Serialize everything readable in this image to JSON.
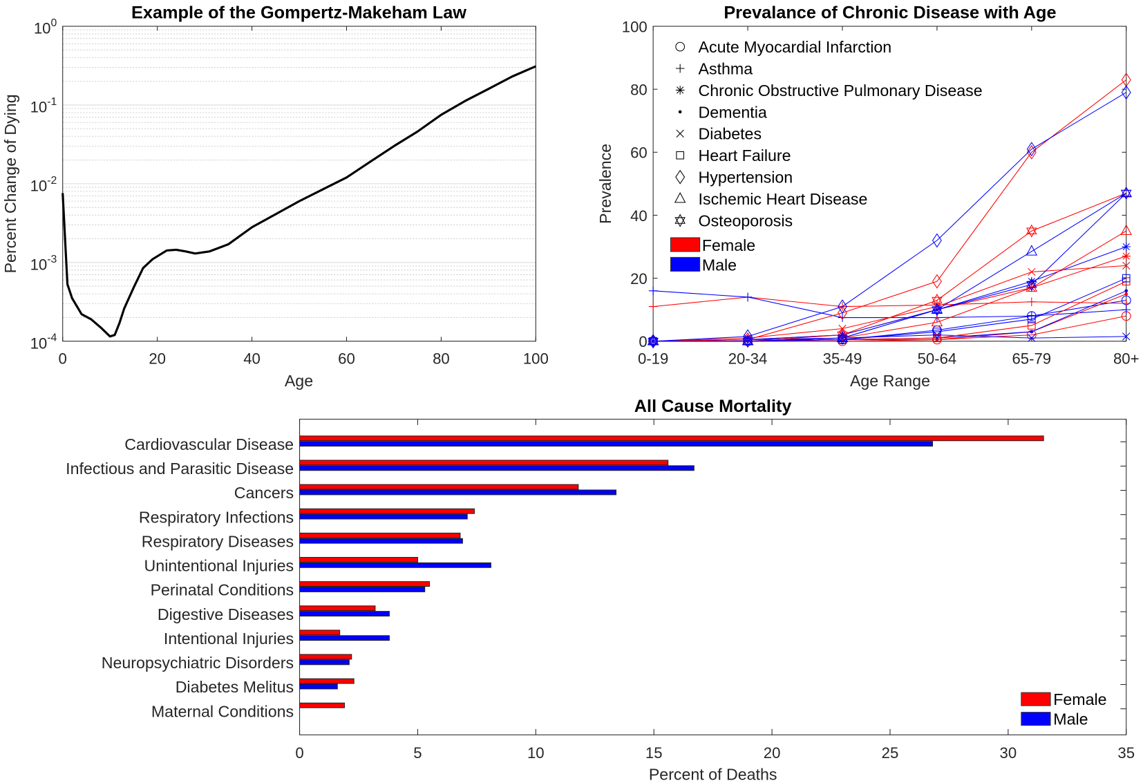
{
  "chart_data": [
    {
      "type": "line",
      "title": "Example of the Gompertz-Makeham Law",
      "xlabel": "Age",
      "ylabel": "Percent Change of Dying",
      "xlim": [
        0,
        100
      ],
      "ylim": [
        0.0001,
        1
      ],
      "yscale": "log",
      "grid": "log minor + major",
      "xticks": [
        "0",
        "20",
        "40",
        "60",
        "80",
        "100"
      ],
      "yticks": [
        "10^0",
        "10^-1",
        "10^-2",
        "10^-3",
        "10^-4"
      ],
      "line_color": "#000000",
      "x": [
        0,
        1,
        2,
        4,
        6,
        8,
        10,
        11,
        12,
        13,
        15,
        17,
        19,
        22,
        24,
        26,
        28,
        31,
        35,
        40,
        45,
        50,
        55,
        60,
        65,
        70,
        75,
        80,
        85,
        90,
        95,
        100
      ],
      "y": [
        0.0076,
        0.00053,
        0.00035,
        0.00022,
        0.00019,
        0.00015,
        0.000115,
        0.00012,
        0.00017,
        0.00026,
        0.00048,
        0.00085,
        0.0011,
        0.00142,
        0.00145,
        0.00138,
        0.0013,
        0.00138,
        0.0017,
        0.0028,
        0.0041,
        0.006,
        0.0085,
        0.012,
        0.019,
        0.03,
        0.046,
        0.075,
        0.112,
        0.16,
        0.23,
        0.31
      ]
    },
    {
      "type": "line",
      "title": "Prevalance of Chronic Disease with Age",
      "xlabel": "Age Range",
      "ylabel": "Prevalence",
      "categories": [
        "0-19",
        "20-34",
        "35-49",
        "50-64",
        "65-79",
        "80+"
      ],
      "ylim": [
        0,
        100
      ],
      "yticks": [
        "0",
        "20",
        "40",
        "60",
        "80",
        "100"
      ],
      "legend": "top-left",
      "groups": [
        {
          "name": "Female",
          "color": "#ff0000"
        },
        {
          "name": "Male",
          "color": "#0000ff"
        }
      ],
      "series": [
        {
          "name": "Acute Myocardial Infarction",
          "marker": "circle",
          "female": [
            0,
            0,
            0,
            0.5,
            2,
            8
          ],
          "male": [
            0,
            0,
            0.5,
            3.5,
            8,
            13
          ]
        },
        {
          "name": "Asthma",
          "marker": "plus",
          "female": [
            11,
            14,
            11,
            11.5,
            12.5,
            12
          ],
          "male": [
            16,
            14,
            7.5,
            7.5,
            8,
            10
          ]
        },
        {
          "name": "Chronic Obstructive Pulmonary Disease",
          "marker": "asterisk",
          "female": [
            0,
            0.5,
            2,
            10,
            17,
            27
          ],
          "male": [
            0,
            0.5,
            2,
            10,
            19,
            30
          ]
        },
        {
          "name": "Dementia",
          "marker": "dot",
          "female": [
            0,
            0,
            0.5,
            0.5,
            3,
            15
          ],
          "male": [
            0,
            0,
            0.5,
            1,
            3,
            16
          ]
        },
        {
          "name": "Diabetes",
          "marker": "x",
          "female": [
            0,
            1,
            4,
            11,
            22,
            24
          ],
          "male": [
            0,
            0.5,
            1,
            2,
            1,
            1.5
          ]
        },
        {
          "name": "Heart Failure",
          "marker": "square",
          "female": [
            0,
            0,
            0.5,
            1,
            5,
            19
          ],
          "male": [
            0,
            0,
            0.5,
            3,
            7,
            20
          ]
        },
        {
          "name": "Hypertension",
          "marker": "diamond",
          "female": [
            0,
            0.5,
            9,
            19,
            60,
            83
          ],
          "male": [
            0,
            1.5,
            11,
            32,
            61,
            79
          ]
        },
        {
          "name": "Ischemic Heart Disease",
          "marker": "triangle",
          "female": [
            0,
            0,
            1,
            6,
            17,
            35
          ],
          "male": [
            0,
            0,
            1,
            10,
            28.5,
            47
          ]
        },
        {
          "name": "Osteoporosis",
          "marker": "hexagram",
          "female": [
            0,
            0,
            2,
            13,
            35,
            47
          ],
          "male": [
            0,
            0,
            1,
            10,
            18,
            47
          ]
        }
      ]
    },
    {
      "type": "bar",
      "orientation": "horizontal",
      "title": "All Cause Mortality",
      "xlabel": "Percent of Deaths",
      "xlim": [
        0,
        35
      ],
      "xticks": [
        "0",
        "5",
        "10",
        "15",
        "20",
        "25",
        "30",
        "35"
      ],
      "legend": "bottom-right",
      "categories": [
        "Cardiovascular Disease",
        "Infectious and Parasitic Disease",
        "Cancers",
        "Respiratory Infections",
        "Respiratory Diseases",
        "Unintentional Injuries",
        "Perinatal Conditions",
        "Digestive Diseases",
        "Intentional Injuries",
        "Neuropsychiatric Disorders",
        "Diabetes Melitus",
        "Maternal Conditions"
      ],
      "series": [
        {
          "name": "Female",
          "color": "#ff0000",
          "values": [
            31.5,
            15.6,
            11.8,
            7.4,
            6.8,
            5.0,
            5.5,
            3.2,
            1.7,
            2.2,
            2.3,
            1.9
          ]
        },
        {
          "name": "Male",
          "color": "#0000ff",
          "values": [
            26.8,
            16.7,
            13.4,
            7.1,
            6.9,
            8.1,
            5.3,
            3.8,
            3.8,
            2.1,
            1.6,
            0
          ]
        }
      ]
    }
  ]
}
